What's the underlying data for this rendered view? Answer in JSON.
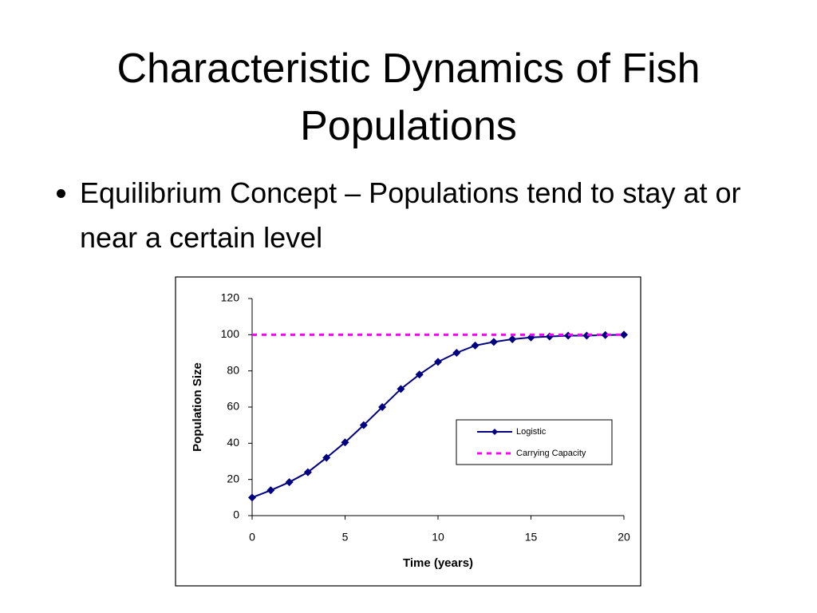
{
  "slide": {
    "title": "Characteristic Dynamics of Fish Populations",
    "bullets": [
      "Equilibrium Concept – Populations tend to stay at or near a certain level"
    ]
  },
  "chart_data": {
    "type": "line",
    "x_label": "Time (years)",
    "y_label": "Population Size",
    "x": [
      0,
      1,
      2,
      3,
      4,
      5,
      6,
      7,
      8,
      9,
      10,
      11,
      12,
      13,
      14,
      15,
      16,
      17,
      18,
      19,
      20
    ],
    "series": [
      {
        "name": "Logistic",
        "color": "#000080",
        "marker": "diamond",
        "dashed": false,
        "values": [
          10,
          14,
          18.5,
          24,
          32,
          40.5,
          50,
          60,
          70,
          78,
          85,
          90,
          94,
          96,
          97.5,
          98.5,
          99,
          99.5,
          99.5,
          99.8,
          100
        ]
      },
      {
        "name": "Carrying Capacity",
        "color": "#ff00ff",
        "marker": "none",
        "dashed": true,
        "values": [
          100,
          100,
          100,
          100,
          100,
          100,
          100,
          100,
          100,
          100,
          100,
          100,
          100,
          100,
          100,
          100,
          100,
          100,
          100,
          100,
          100
        ]
      }
    ],
    "xlim": [
      0,
      20
    ],
    "xticks": [
      0,
      5,
      10,
      15,
      20
    ],
    "ylim": [
      0,
      120
    ],
    "yticks": [
      0,
      20,
      40,
      60,
      80,
      100,
      120
    ],
    "grid": false,
    "legend": "right"
  }
}
